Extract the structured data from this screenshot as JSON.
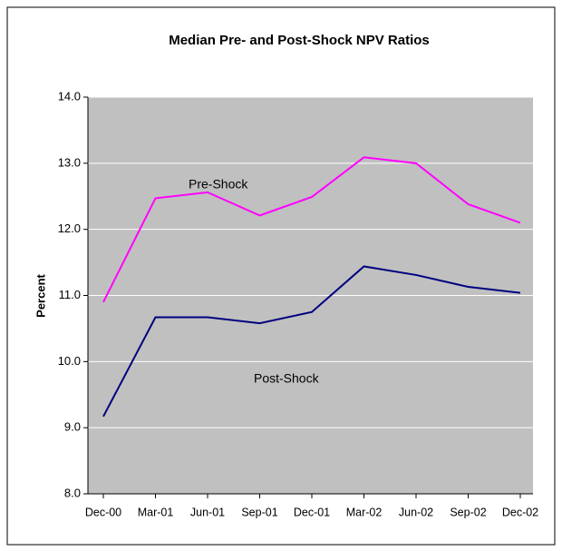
{
  "chart_data": {
    "type": "line",
    "title": "Median Pre- and Post-Shock NPV Ratios",
    "y_label": "Percent",
    "categories": [
      "Dec-00",
      "Mar-01",
      "Jun-01",
      "Sep-01",
      "Dec-01",
      "Mar-02",
      "Jun-02",
      "Sep-02",
      "Dec-02"
    ],
    "series": [
      {
        "name": "Pre-Shock",
        "color": "#ff00ff",
        "values": [
          10.9,
          12.47,
          12.56,
          12.21,
          12.49,
          13.09,
          13.0,
          12.38,
          12.1
        ]
      },
      {
        "name": "Post-Shock",
        "color": "#000080",
        "values": [
          9.17,
          10.67,
          10.67,
          10.58,
          10.75,
          11.44,
          11.31,
          11.13,
          11.04
        ]
      }
    ],
    "ylim": [
      8,
      14
    ],
    "yticks": [
      {
        "value": 8,
        "label": "8.0"
      },
      {
        "value": 9,
        "label": "9.0"
      },
      {
        "value": 10,
        "label": "10.0"
      },
      {
        "value": 11,
        "label": "11.0"
      },
      {
        "value": 12,
        "label": "12.0"
      },
      {
        "value": 13,
        "label": "13.0"
      },
      {
        "value": 14,
        "label": "14.0"
      }
    ],
    "grid": true,
    "plot_background": "#c0c0c0"
  }
}
